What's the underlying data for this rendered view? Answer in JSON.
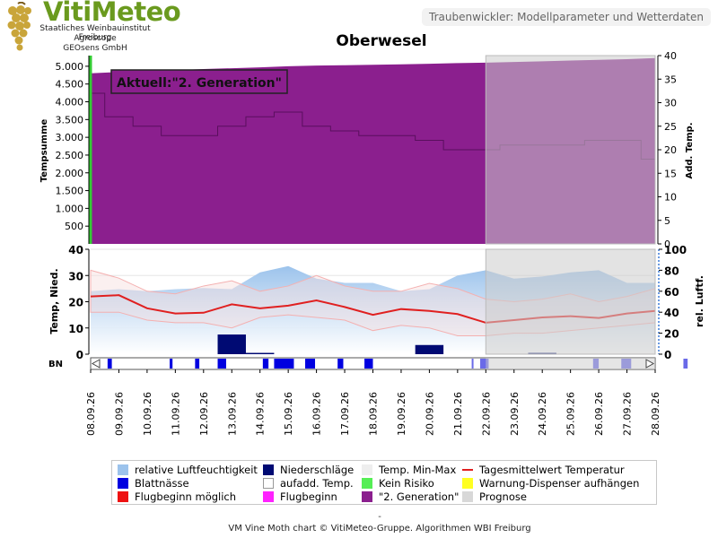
{
  "header": {
    "brand_name": "VitiMeteo",
    "brand_lines": [
      "Staatliches Weinbauinstitut Freiburg",
      "Agroscope",
      "GEOsens GmbH"
    ],
    "right_title": "Traubenwickler: Modellparameter und Wetterdaten"
  },
  "title": "Oberwesel",
  "annotation": "Aktuell:\"2. Generation\"",
  "bn_label": "BN",
  "footer_dash": "-",
  "footer": "VM Vine Moth chart © VitiMeteo-Gruppe. Algorithmen WBI Freiburg",
  "colors": {
    "generation2": "#8b1f8e",
    "prognosis": "#cccccc",
    "humidity": "#9cc3ec",
    "precip": "#000a73",
    "leaf_wet": "#0000e0",
    "temp_line": "#e02020",
    "temp_range": "#f4b0b0"
  },
  "legend": [
    {
      "label": "relative Luftfeuchtigkeit",
      "color": "#9cc3ec",
      "kind": "box"
    },
    {
      "label": "Niederschläge",
      "color": "#000a73",
      "kind": "box"
    },
    {
      "label": "Temp. Min-Max",
      "color": "#eeeeee",
      "kind": "box"
    },
    {
      "label": "Tagesmittelwert Temperatur",
      "color": "#e02020",
      "kind": "line"
    },
    {
      "label": "Blattnässe",
      "color": "#0000e0",
      "kind": "box"
    },
    {
      "label": "aufadd. Temp.",
      "color": "#ffffff",
      "kind": "box"
    },
    {
      "label": "Kein Risiko",
      "color": "#55ee55",
      "kind": "box"
    },
    {
      "label": "Warnung-Dispenser aufhängen",
      "color": "#ffff22",
      "kind": "box"
    },
    {
      "label": "Flugbeginn möglich",
      "color": "#ee1111",
      "kind": "box"
    },
    {
      "label": "Flugbeginn",
      "color": "#ff22ff",
      "kind": "box"
    },
    {
      "label": "\"2. Generation\"",
      "color": "#8b1f8e",
      "kind": "box"
    },
    {
      "label": "Prognose",
      "color": "#d8d8d8",
      "kind": "box"
    }
  ],
  "chart_data": [
    {
      "type": "area",
      "x": [
        "08.09.26",
        "09.09.26",
        "10.09.26",
        "11.09.26",
        "12.09.26",
        "13.09.26",
        "14.09.26",
        "15.09.26",
        "16.09.26",
        "17.09.26",
        "18.09.26",
        "19.09.26",
        "20.09.26",
        "21.09.26",
        "22.09.26",
        "23.09.26",
        "24.09.26",
        "25.09.26",
        "26.09.26",
        "27.09.26",
        "28.09.26"
      ],
      "ylabel": "Tempsumme",
      "ylabel_right": "Add. Temp.",
      "yticks": [
        500,
        1000,
        1500,
        2000,
        2500,
        3000,
        3500,
        4000,
        4500,
        5000
      ],
      "y_right_ticks": [
        0,
        5,
        10,
        15,
        20,
        25,
        30,
        35,
        40
      ],
      "ylim": [
        0,
        5300
      ],
      "y_right_lim": [
        0,
        40
      ],
      "series": [
        {
          "values": [
            4800,
            4840,
            4870,
            4890,
            4920,
            4945,
            4970,
            5000,
            5020,
            5030,
            5040,
            5055,
            5070,
            5090,
            5100,
            5120,
            5140,
            5160,
            5180,
            5200,
            5230
          ]
        },
        {
          "values": [
            32,
            27,
            25,
            23,
            23,
            25,
            27,
            28,
            25,
            24,
            23,
            23,
            22,
            20,
            20,
            21,
            21,
            21,
            22,
            22,
            18
          ]
        }
      ],
      "prognosis_from": "22.09.26"
    },
    {
      "type": "line",
      "x": [
        "08.09.26",
        "09.09.26",
        "10.09.26",
        "11.09.26",
        "12.09.26",
        "13.09.26",
        "14.09.26",
        "15.09.26",
        "16.09.26",
        "17.09.26",
        "18.09.26",
        "19.09.26",
        "20.09.26",
        "21.09.26",
        "22.09.26",
        "23.09.26",
        "24.09.26",
        "25.09.26",
        "26.09.26",
        "27.09.26",
        "28.09.26"
      ],
      "ylabel": "Temp, Nied.",
      "ylabel_right": "rel. Luftf.",
      "yticks": [
        0,
        10,
        20,
        30,
        40
      ],
      "y_right_ticks": [
        0,
        20,
        40,
        60,
        80,
        100
      ],
      "ylim": [
        0,
        40
      ],
      "y_right_lim": [
        0,
        100
      ],
      "series": [
        {
          "name": "Tagesmittelwert Temperatur",
          "values": [
            22,
            22.5,
            17.5,
            15.5,
            15.8,
            19,
            17.5,
            18.5,
            20.5,
            18,
            15,
            17.2,
            16.5,
            15.3,
            12,
            13,
            14,
            14.5,
            13.8,
            15.5,
            16.5
          ]
        },
        {
          "name": "Temp. Max",
          "values": [
            32,
            29,
            24,
            23,
            26,
            28,
            24,
            26,
            30,
            26,
            24,
            24,
            27,
            25,
            21,
            20,
            21,
            23,
            20,
            22,
            25
          ]
        },
        {
          "name": "Temp. Min",
          "values": [
            16,
            16,
            13,
            12,
            12,
            10,
            14,
            15,
            14,
            13,
            9,
            11,
            10,
            7,
            7,
            8,
            8,
            9,
            10,
            11,
            12
          ]
        },
        {
          "name": "relative Luftfeuchtigkeit",
          "values": [
            60,
            62,
            60,
            62,
            63,
            62,
            78,
            84,
            72,
            68,
            68,
            60,
            62,
            75,
            80,
            72,
            74,
            78,
            80,
            68,
            68
          ]
        },
        {
          "name": "Niederschläge",
          "values": [
            0,
            0,
            0,
            0,
            0,
            7.5,
            0.5,
            0,
            0,
            0,
            0,
            0,
            3.5,
            0,
            0,
            0,
            0.5,
            0,
            0,
            0,
            0
          ]
        }
      ],
      "prognosis_from": "22.09.26"
    },
    {
      "type": "bar",
      "name": "BN",
      "x": [
        "08.09.26",
        "09.09.26",
        "10.09.26",
        "11.09.26",
        "12.09.26",
        "13.09.26",
        "14.09.26",
        "15.09.26",
        "16.09.26",
        "17.09.26",
        "18.09.26",
        "19.09.26",
        "20.09.26",
        "21.09.26",
        "22.09.26",
        "23.09.26",
        "24.09.26",
        "25.09.26",
        "26.09.26",
        "27.09.26",
        "28.09.26"
      ],
      "blattnaesse": [
        {
          "day": 1,
          "start": 0.1,
          "width": 0.15
        },
        {
          "day": 3,
          "start": 0.3,
          "width": 0.1
        },
        {
          "day": 4,
          "start": 0.2,
          "width": 0.15
        },
        {
          "day": 5,
          "start": 0.0,
          "width": 0.3
        },
        {
          "day": 6,
          "start": 0.6,
          "width": 0.2
        },
        {
          "day": 7,
          "start": 0.0,
          "width": 0.7
        },
        {
          "day": 8,
          "start": 0.1,
          "width": 0.35
        },
        {
          "day": 9,
          "start": 0.25,
          "width": 0.2
        },
        {
          "day": 10,
          "start": 0.2,
          "width": 0.3
        },
        {
          "day": 14,
          "start": 0.0,
          "width": 0.05
        },
        {
          "day": 14,
          "start": 0.3,
          "width": 0.3
        },
        {
          "day": 18,
          "start": 0.3,
          "width": 0.2
        },
        {
          "day": 19,
          "start": 0.3,
          "width": 0.35
        },
        {
          "day": 21,
          "start": 0.5,
          "width": 0.15
        }
      ]
    }
  ]
}
